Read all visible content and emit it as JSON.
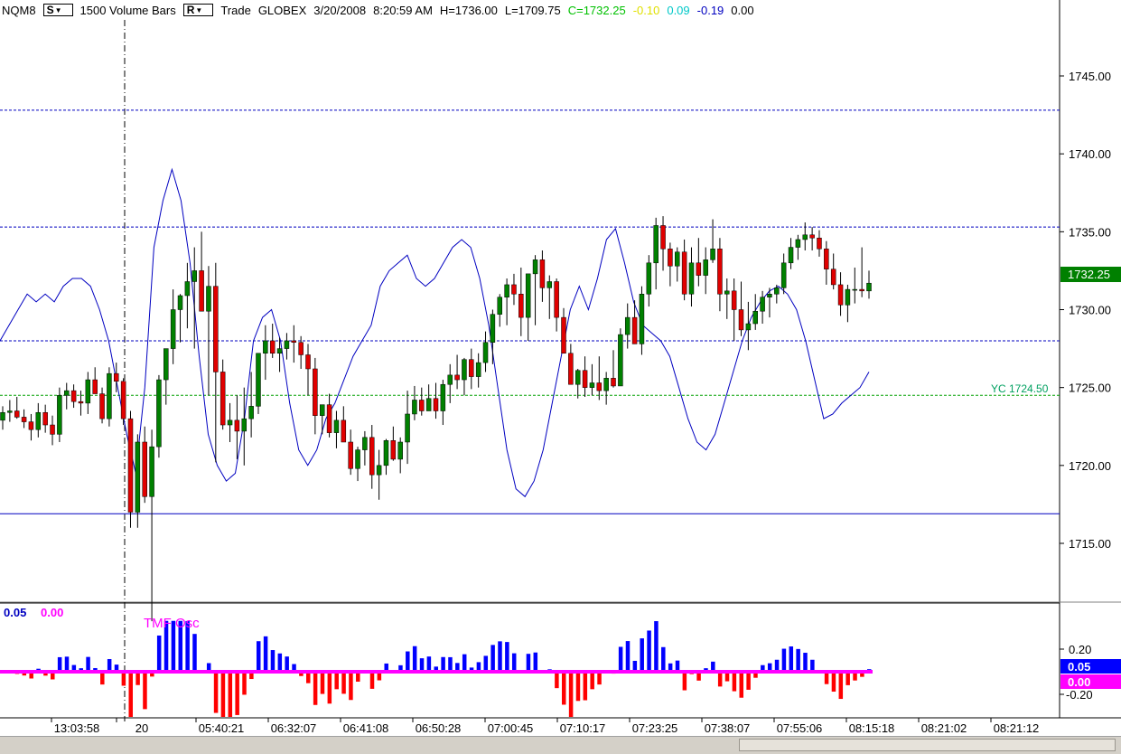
{
  "header": {
    "symbol": "NQM8",
    "s_button": "S",
    "bar_type": "1500 Volume Bars",
    "r_button": "R",
    "mode": "Trade",
    "exchange": "GLOBEX",
    "date": "3/20/2008",
    "time": "8:20:59 AM",
    "high": "H=1736.00",
    "low": "L=1709.75",
    "close": "C=1732.25",
    "change1": "-0.10",
    "change2": "0.09",
    "change3": "-0.19",
    "change4": "0.00"
  },
  "colors": {
    "close": "#00c000",
    "change1": "#e0e000",
    "change2": "#00c8c8",
    "change3": "#0000c0",
    "up_candle": "#008000",
    "down_candle": "#e00000",
    "envelope": "#0000c0",
    "osc_pos": "#0000ff",
    "osc_neg": "#ff0000",
    "osc_zero": "#ff00ff",
    "last_price_bg": "#008000",
    "yc_line": "#00a000"
  },
  "price_axis": {
    "ticks": [
      "1745.00",
      "1740.00",
      "1735.00",
      "1730.00",
      "1725.00",
      "1720.00",
      "1715.00"
    ],
    "last_price": "1732.25",
    "yc_label": "YC 1724.50"
  },
  "oscillator": {
    "name": "TMF Osc",
    "value1": "0.05",
    "value2": "0.00",
    "ticks": [
      "0.20",
      "-0.20"
    ],
    "badge1": "0.05",
    "badge2": "0.00"
  },
  "time_axis": [
    "13:03:58",
    "20",
    "05:40:21",
    "06:32:07",
    "06:41:08",
    "06:50:28",
    "07:00:45",
    "07:10:17",
    "07:23:25",
    "07:38:07",
    "07:55:06",
    "08:15:18",
    "08:21:02",
    "08:21:12"
  ],
  "chart_data": {
    "type": "candlestick",
    "price_levels": {
      "dotted_top": 1742.8,
      "dotted_mid": 1735.3,
      "dotted_low": 1728.0,
      "yc": 1724.5,
      "solid": 1716.9
    },
    "candles_ohlc": [
      [
        1722.9,
        1723.8,
        1722.3,
        1723.4
      ],
      [
        1723.4,
        1724.2,
        1722.8,
        1723.5
      ],
      [
        1723.5,
        1724.4,
        1723.0,
        1723.1
      ],
      [
        1723.1,
        1723.6,
        1722.4,
        1722.8
      ],
      [
        1722.8,
        1723.3,
        1721.6,
        1722.3
      ],
      [
        1722.3,
        1724.0,
        1721.8,
        1723.4
      ],
      [
        1723.4,
        1723.9,
        1722.1,
        1722.6
      ],
      [
        1722.6,
        1723.2,
        1721.3,
        1722.0
      ],
      [
        1722.0,
        1725.0,
        1721.5,
        1724.5
      ],
      [
        1724.5,
        1725.3,
        1723.6,
        1724.8
      ],
      [
        1724.8,
        1725.2,
        1723.7,
        1724.1
      ],
      [
        1724.1,
        1724.8,
        1723.2,
        1724.0
      ],
      [
        1724.0,
        1726.0,
        1723.3,
        1725.5
      ],
      [
        1725.5,
        1726.3,
        1724.6,
        1724.6
      ],
      [
        1724.6,
        1725.0,
        1722.7,
        1723.0
      ],
      [
        1723.0,
        1726.3,
        1722.5,
        1725.9
      ],
      [
        1725.9,
        1726.6,
        1724.7,
        1725.4
      ],
      [
        1725.4,
        1725.6,
        1722.6,
        1723.0
      ],
      [
        1723.0,
        1723.5,
        1716.0,
        1717.0
      ],
      [
        1717.0,
        1722.0,
        1716.0,
        1721.5
      ],
      [
        1721.5,
        1722.5,
        1717.6,
        1718.0
      ],
      [
        1718.0,
        1722.3,
        1710.0,
        1721.2
      ],
      [
        1721.2,
        1725.8,
        1720.5,
        1725.5
      ],
      [
        1725.5,
        1727.0,
        1723.9,
        1727.5
      ],
      [
        1727.5,
        1731.3,
        1726.5,
        1730.0
      ],
      [
        1730.0,
        1731.0,
        1727.9,
        1730.9
      ],
      [
        1730.9,
        1733.0,
        1728.8,
        1731.8
      ],
      [
        1731.8,
        1734.0,
        1727.5,
        1732.5
      ],
      [
        1732.5,
        1735.0,
        1730.5,
        1729.9
      ],
      [
        1729.9,
        1732.8,
        1724.5,
        1731.5
      ],
      [
        1731.5,
        1733.0,
        1720.2,
        1726.0
      ],
      [
        1726.0,
        1726.8,
        1722.3,
        1722.6
      ],
      [
        1722.6,
        1724.0,
        1721.5,
        1722.9
      ],
      [
        1722.9,
        1724.5,
        1720.4,
        1722.2
      ],
      [
        1722.2,
        1725.0,
        1720.0,
        1723.0
      ],
      [
        1723.0,
        1726.0,
        1721.8,
        1723.8
      ],
      [
        1723.8,
        1727.0,
        1723.3,
        1727.2
      ],
      [
        1727.2,
        1729.0,
        1725.5,
        1728.0
      ],
      [
        1728.0,
        1729.1,
        1726.9,
        1727.2
      ],
      [
        1727.2,
        1728.2,
        1726.0,
        1727.5
      ],
      [
        1727.5,
        1728.5,
        1726.8,
        1728.0
      ],
      [
        1728.0,
        1729.0,
        1726.6,
        1727.9
      ],
      [
        1727.9,
        1728.3,
        1726.2,
        1727.1
      ],
      [
        1727.1,
        1727.8,
        1724.5,
        1726.2
      ],
      [
        1726.2,
        1726.9,
        1722.0,
        1723.2
      ],
      [
        1723.2,
        1723.8,
        1722.0,
        1723.9
      ],
      [
        1723.9,
        1724.6,
        1721.8,
        1722.1
      ],
      [
        1722.1,
        1723.5,
        1721.1,
        1722.9
      ],
      [
        1722.9,
        1723.8,
        1722.2,
        1721.5
      ],
      [
        1721.5,
        1722.3,
        1719.4,
        1719.8
      ],
      [
        1719.8,
        1721.2,
        1719.0,
        1721.0
      ],
      [
        1721.0,
        1722.2,
        1720.0,
        1721.8
      ],
      [
        1721.8,
        1722.6,
        1718.5,
        1719.4
      ],
      [
        1719.4,
        1721.0,
        1717.8,
        1720.0
      ],
      [
        1720.0,
        1721.7,
        1719.4,
        1721.6
      ],
      [
        1721.6,
        1722.5,
        1720.3,
        1720.4
      ],
      [
        1720.4,
        1721.8,
        1719.5,
        1721.5
      ],
      [
        1721.5,
        1724.8,
        1720.1,
        1723.3
      ],
      [
        1723.3,
        1725.1,
        1722.9,
        1724.2
      ],
      [
        1724.2,
        1725.0,
        1723.2,
        1723.5
      ],
      [
        1723.5,
        1725.2,
        1723.5,
        1724.3
      ],
      [
        1724.3,
        1725.3,
        1723.0,
        1723.5
      ],
      [
        1723.5,
        1725.5,
        1722.6,
        1725.2
      ],
      [
        1725.2,
        1726.5,
        1724.0,
        1725.8
      ],
      [
        1725.8,
        1727.1,
        1724.9,
        1725.5
      ],
      [
        1725.5,
        1726.9,
        1724.5,
        1726.8
      ],
      [
        1726.8,
        1727.5,
        1724.9,
        1725.7
      ],
      [
        1725.7,
        1727.2,
        1725.0,
        1726.6
      ],
      [
        1726.6,
        1728.6,
        1726.0,
        1727.9
      ],
      [
        1727.9,
        1730.0,
        1726.5,
        1729.7
      ],
      [
        1729.7,
        1731.0,
        1728.9,
        1730.8
      ],
      [
        1730.8,
        1732.0,
        1729.0,
        1731.6
      ],
      [
        1731.6,
        1732.3,
        1730.3,
        1731.0
      ],
      [
        1731.0,
        1732.7,
        1728.3,
        1729.5
      ],
      [
        1729.5,
        1731.8,
        1728.0,
        1732.3
      ],
      [
        1732.3,
        1733.5,
        1729.0,
        1733.2
      ],
      [
        1733.2,
        1733.8,
        1730.5,
        1731.4
      ],
      [
        1731.4,
        1732.2,
        1729.4,
        1731.8
      ],
      [
        1731.8,
        1732.0,
        1728.6,
        1729.5
      ],
      [
        1729.5,
        1730.1,
        1727.2,
        1727.2
      ],
      [
        1727.2,
        1727.8,
        1725.4,
        1725.2
      ],
      [
        1725.2,
        1726.2,
        1724.3,
        1726.1
      ],
      [
        1726.1,
        1727.0,
        1724.4,
        1725.0
      ],
      [
        1725.0,
        1726.5,
        1724.5,
        1725.3
      ],
      [
        1725.3,
        1727.0,
        1724.2,
        1724.8
      ],
      [
        1724.8,
        1726.0,
        1723.9,
        1725.6
      ],
      [
        1725.6,
        1727.4,
        1725.0,
        1725.1
      ],
      [
        1725.1,
        1728.8,
        1725.1,
        1728.4
      ],
      [
        1728.4,
        1730.4,
        1727.5,
        1729.5
      ],
      [
        1729.5,
        1730.6,
        1727.8,
        1727.8
      ],
      [
        1727.8,
        1731.5,
        1727.1,
        1731.0
      ],
      [
        1731.0,
        1733.5,
        1730.2,
        1733.0
      ],
      [
        1733.0,
        1735.9,
        1731.3,
        1735.4
      ],
      [
        1735.4,
        1736.0,
        1732.5,
        1733.9
      ],
      [
        1733.9,
        1734.3,
        1731.5,
        1732.8
      ],
      [
        1732.8,
        1734.0,
        1731.8,
        1733.7
      ],
      [
        1733.7,
        1734.5,
        1730.6,
        1731.0
      ],
      [
        1731.0,
        1734.0,
        1730.2,
        1733.0
      ],
      [
        1733.0,
        1734.6,
        1731.5,
        1732.2
      ],
      [
        1732.2,
        1734.0,
        1731.0,
        1733.2
      ],
      [
        1733.2,
        1735.8,
        1733.0,
        1733.9
      ],
      [
        1733.9,
        1734.6,
        1729.9,
        1731.0
      ],
      [
        1731.0,
        1732.0,
        1729.4,
        1731.2
      ],
      [
        1731.2,
        1732.0,
        1728.0,
        1730.0
      ],
      [
        1730.0,
        1731.8,
        1728.3,
        1728.7
      ],
      [
        1728.7,
        1730.5,
        1727.4,
        1729.1
      ],
      [
        1729.1,
        1731.0,
        1728.7,
        1729.9
      ],
      [
        1729.9,
        1731.2,
        1729.1,
        1730.8
      ],
      [
        1730.8,
        1731.4,
        1729.5,
        1731.0
      ],
      [
        1731.0,
        1731.6,
        1730.4,
        1731.4
      ],
      [
        1731.4,
        1733.6,
        1731.0,
        1733.0
      ],
      [
        1733.0,
        1734.6,
        1732.6,
        1734.0
      ],
      [
        1734.0,
        1734.8,
        1733.2,
        1734.5
      ],
      [
        1734.5,
        1735.6,
        1733.8,
        1734.8
      ],
      [
        1734.8,
        1735.3,
        1733.8,
        1734.6
      ],
      [
        1734.6,
        1735.1,
        1733.4,
        1733.9
      ],
      [
        1733.9,
        1734.4,
        1731.6,
        1732.6
      ],
      [
        1732.6,
        1733.6,
        1731.3,
        1731.6
      ],
      [
        1731.6,
        1732.4,
        1729.6,
        1730.3
      ],
      [
        1730.3,
        1731.6,
        1729.2,
        1731.3
      ],
      [
        1731.3,
        1732.7,
        1730.4,
        1731.3
      ],
      [
        1731.3,
        1734.0,
        1730.8,
        1731.2
      ],
      [
        1731.2,
        1732.5,
        1730.7,
        1731.7
      ]
    ],
    "envelope": [
      1728,
      1729,
      1730,
      1731,
      1730.5,
      1731,
      1730.5,
      1731.5,
      1732,
      1732,
      1731.5,
      1730,
      1728,
      1725,
      1722,
      1719.5,
      1725,
      1734,
      1737,
      1739,
      1737,
      1733,
      1727,
      1722,
      1720,
      1719,
      1719.5,
      1723,
      1728,
      1729.5,
      1730,
      1728,
      1724,
      1721,
      1720,
      1721,
      1723,
      1724,
      1725.5,
      1727,
      1728,
      1729,
      1731.5,
      1732.5,
      1733,
      1733.5,
      1732,
      1731.5,
      1732,
      1733,
      1734,
      1734.5,
      1734,
      1732,
      1729,
      1725,
      1721,
      1718.5,
      1718,
      1719,
      1721,
      1724,
      1727,
      1730,
      1731.5,
      1730,
      1732,
      1734.5,
      1735.2,
      1733,
      1730.5,
      1729,
      1728.5,
      1728,
      1727,
      1725,
      1723,
      1721.5,
      1721,
      1722,
      1724,
      1726,
      1728,
      1729.5,
      1730.5,
      1731.2,
      1731.5,
      1731,
      1730,
      1728,
      1725.5,
      1723,
      1723.3,
      1724,
      1724.5,
      1725,
      1726
    ]
  }
}
